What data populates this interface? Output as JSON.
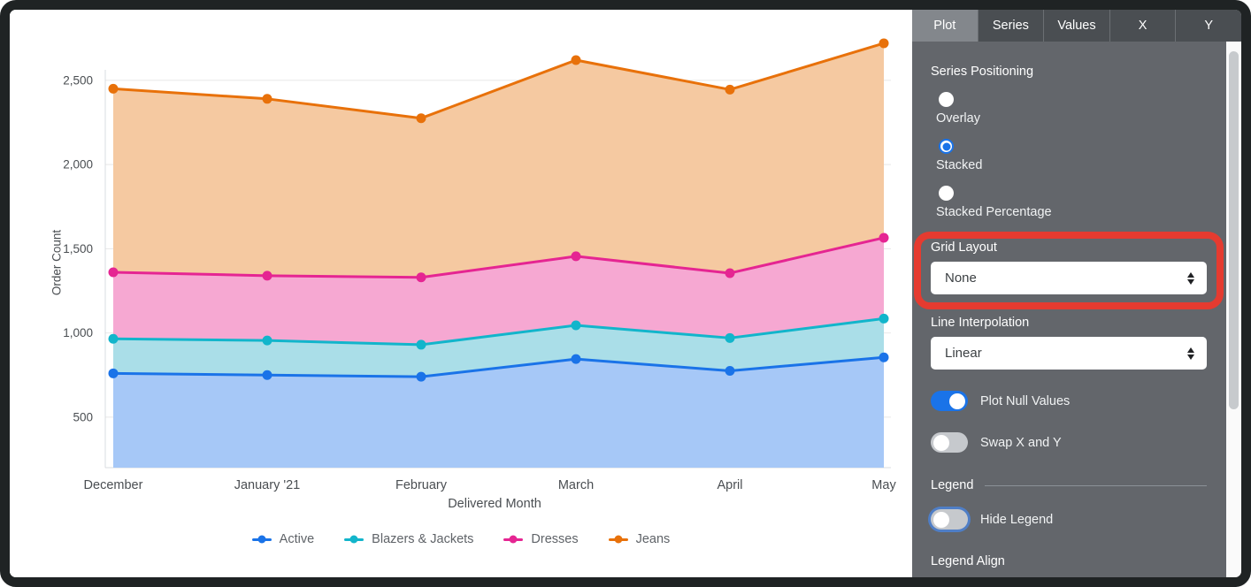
{
  "chart_data": {
    "type": "area",
    "stacked": true,
    "title": "",
    "xlabel": "Delivered Month",
    "ylabel": "Order Count",
    "x": [
      "December",
      "January '21",
      "February",
      "March",
      "April",
      "May"
    ],
    "series": [
      {
        "name": "Active",
        "color": "#1a73e8",
        "fill": "#a6c8f7",
        "values": [
          760,
          750,
          740,
          845,
          775,
          855
        ]
      },
      {
        "name": "Blazers & Jackets",
        "color": "#12b5cb",
        "fill": "#aadee8",
        "values": [
          205,
          205,
          190,
          200,
          195,
          230
        ]
      },
      {
        "name": "Dresses",
        "color": "#e52592",
        "fill": "#f6a8d2",
        "values": [
          395,
          385,
          400,
          410,
          385,
          480
        ]
      },
      {
        "name": "Jeans",
        "color": "#e8710a",
        "fill": "#f5c9a1",
        "values": [
          1090,
          1050,
          945,
          1165,
          1090,
          1155
        ]
      }
    ],
    "cumulative_tops": {
      "Active": [
        760,
        750,
        740,
        845,
        775,
        855
      ],
      "Blazers & Jackets": [
        965,
        955,
        930,
        1045,
        970,
        1085
      ],
      "Dresses": [
        1360,
        1340,
        1330,
        1455,
        1355,
        1565
      ],
      "Jeans": [
        2450,
        2390,
        2275,
        2620,
        2445,
        2720
      ]
    },
    "y_ticks": [
      500,
      1000,
      1500,
      2000,
      2500
    ],
    "ylim": [
      200,
      2780
    ],
    "grid": true,
    "legend_position": "bottom"
  },
  "panel": {
    "tabs": [
      {
        "label": "Plot",
        "selected": true
      },
      {
        "label": "Series",
        "selected": false
      },
      {
        "label": "Values",
        "selected": false
      },
      {
        "label": "X",
        "selected": false
      },
      {
        "label": "Y",
        "selected": false
      }
    ],
    "series_positioning": {
      "label": "Series Positioning",
      "options": [
        {
          "label": "Overlay",
          "selected": false
        },
        {
          "label": "Stacked",
          "selected": true
        },
        {
          "label": "Stacked Percentage",
          "selected": false
        }
      ]
    },
    "grid_layout": {
      "label": "Grid Layout",
      "value": "None"
    },
    "line_interpolation": {
      "label": "Line Interpolation",
      "value": "Linear"
    },
    "plot_null_values": {
      "label": "Plot Null Values",
      "on": true
    },
    "swap_x_y": {
      "label": "Swap X and Y",
      "on": false
    },
    "legend": {
      "header": "Legend",
      "hide_legend": {
        "label": "Hide Legend",
        "on": false,
        "focused": true
      },
      "legend_align": {
        "label": "Legend Align"
      }
    }
  },
  "annotation": {
    "type": "highlight-box",
    "color": "#e53b30",
    "target": "Grid Layout"
  }
}
